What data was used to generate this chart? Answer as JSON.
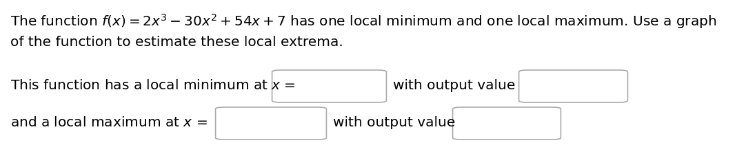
{
  "background_color": "#ffffff",
  "text_color": "#000000",
  "line1_plain": "The function ",
  "line1_math": "$f(x) = 2x^3 - 30x^2 + 54x + 7$",
  "line1_plain2": " has one local minimum and one local maximum. Use a graph",
  "line2": "of the function to estimate these local extrema.",
  "line3_pre": "This function has a local minimum at ",
  "line3_x": "$x$",
  "line3_eq": " =",
  "line3_mid": "with output value",
  "line4_pre": "and a local maximum at ",
  "line4_x": "$x$",
  "line4_eq": " =",
  "line4_mid": "with output value",
  "font_size": 14.5,
  "box_edge_color": "#aaaaaa",
  "box_facecolor": "#ffffff",
  "figwidth": 10.82,
  "figheight": 2.11
}
